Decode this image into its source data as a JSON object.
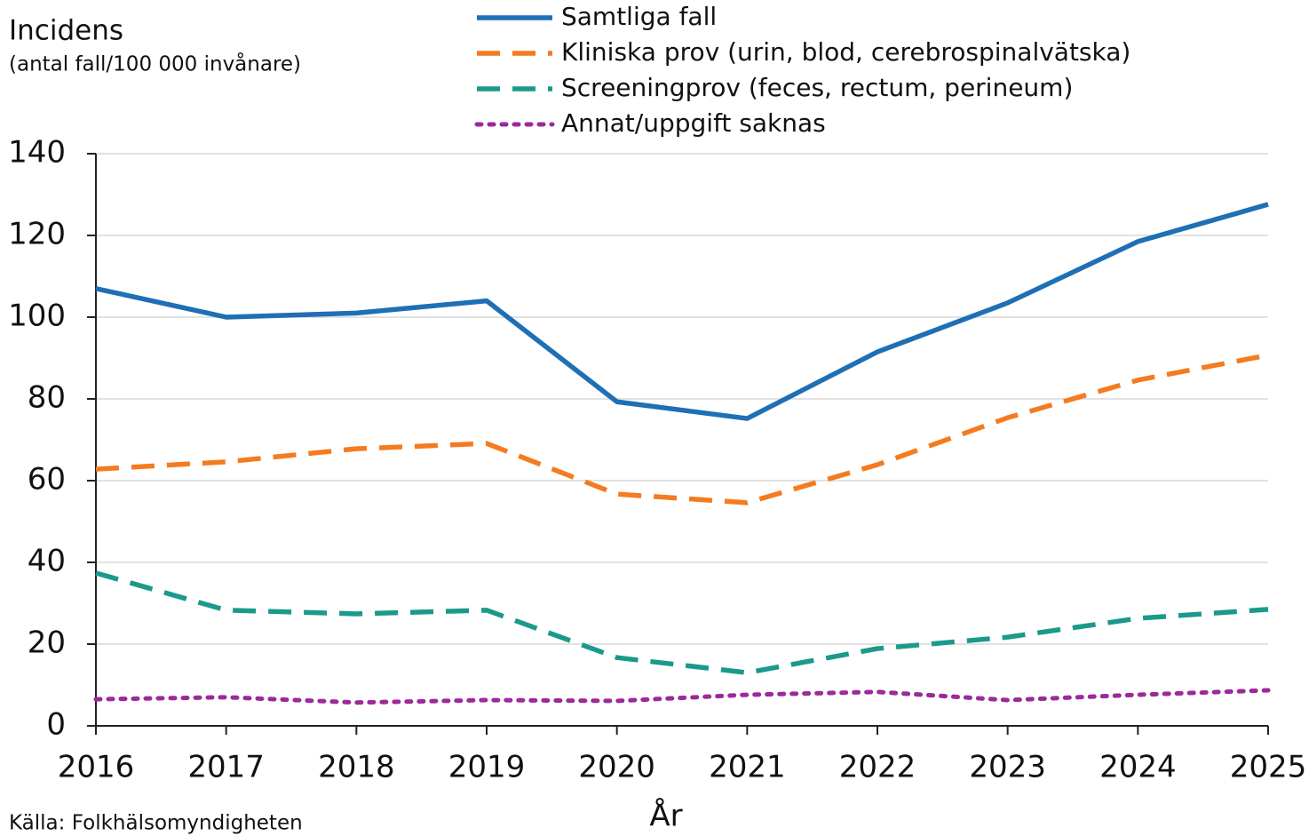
{
  "chart_data": {
    "type": "line",
    "title": "Incidens",
    "subtitle": "(antal fall/100 000 invånare)",
    "x_label": "År",
    "source": "Källa: Folkhälsomyndigheten",
    "x": [
      2016,
      2017,
      2018,
      2019,
      2020,
      2021,
      2022,
      2023,
      2024,
      2025
    ],
    "xlim": [
      2016,
      2025
    ],
    "xticks": [
      2016,
      2017,
      2018,
      2019,
      2020,
      2021,
      2022,
      2023,
      2024,
      2025
    ],
    "ylim": [
      0,
      140
    ],
    "yticks": [
      0,
      20,
      40,
      60,
      80,
      100,
      120,
      140
    ],
    "grid": true,
    "legend": "top",
    "series": [
      {
        "name": "Samtliga fall",
        "color": "#1f6fb5",
        "style": "solid",
        "values": [
          107,
          100,
          101,
          104,
          79.3,
          75.2,
          91.5,
          103.5,
          118.5,
          127.6
        ]
      },
      {
        "name": "Kliniska prov (urin, blod, cerebrospinalvätska)",
        "color": "#f47b20",
        "style": "dashed",
        "values": [
          62.8,
          64.6,
          67.8,
          69.1,
          56.7,
          54.6,
          63.9,
          75.4,
          84.6,
          90.7
        ]
      },
      {
        "name": "Screeningprov (feces, rectum, perineum)",
        "color": "#1a9a8a",
        "style": "dashed",
        "values": [
          37.4,
          28.3,
          27.4,
          28.3,
          16.7,
          13,
          18.9,
          21.7,
          26.3,
          28.5
        ]
      },
      {
        "name": "Annat/uppgift saknas",
        "color": "#9b2a9b",
        "style": "dotted",
        "values": [
          6.5,
          7,
          5.7,
          6.3,
          6.1,
          7.6,
          8.3,
          6.3,
          7.6,
          8.7
        ]
      }
    ]
  }
}
